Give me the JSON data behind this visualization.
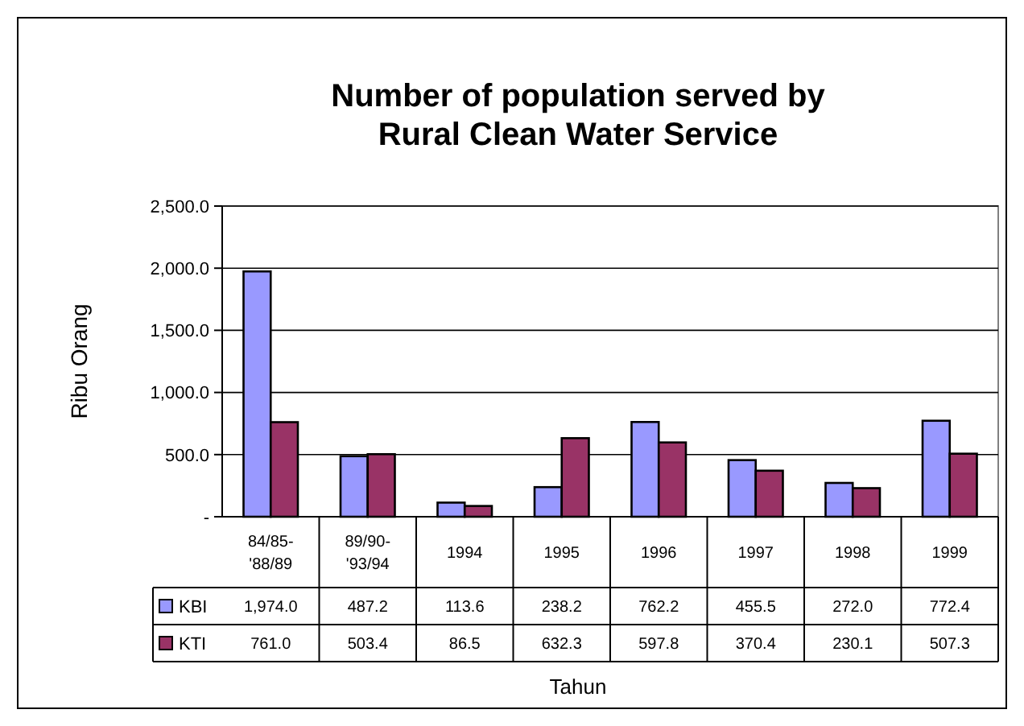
{
  "chart_data": {
    "type": "bar",
    "title": "Number of population served by Rural Clean Water Service",
    "xlabel": "Tahun",
    "ylabel": "Ribu Orang",
    "categories": [
      "84/85-'88/89",
      "89/90-'93/94",
      "1994",
      "1995",
      "1996",
      "1997",
      "1998",
      "1999"
    ],
    "series": [
      {
        "name": "KBI",
        "color": "#9999ff",
        "values": [
          1974.0,
          487.2,
          113.6,
          238.2,
          762.2,
          455.5,
          272.0,
          772.4
        ],
        "value_labels": [
          "1,974.0",
          "487.2",
          "113.6",
          "238.2",
          "762.2",
          "455.5",
          "272.0",
          "772.4"
        ]
      },
      {
        "name": "KTI",
        "color": "#993366",
        "values": [
          761.0,
          503.4,
          86.5,
          632.3,
          597.8,
          370.4,
          230.1,
          507.3
        ],
        "value_labels": [
          "761.0",
          "503.4",
          "86.5",
          "632.3",
          "597.8",
          "370.4",
          "230.1",
          "507.3"
        ]
      }
    ],
    "ylim": [
      0,
      2500
    ],
    "yticks": [
      {
        "value": 0,
        "label": "-"
      },
      {
        "value": 500,
        "label": "500.0"
      },
      {
        "value": 1000,
        "label": "1,000.0"
      },
      {
        "value": 1500,
        "label": "1,500.0"
      },
      {
        "value": 2000,
        "label": "2,000.0"
      },
      {
        "value": 2500,
        "label": "2,500.0"
      }
    ],
    "grid": "y",
    "legend": "bottom"
  }
}
